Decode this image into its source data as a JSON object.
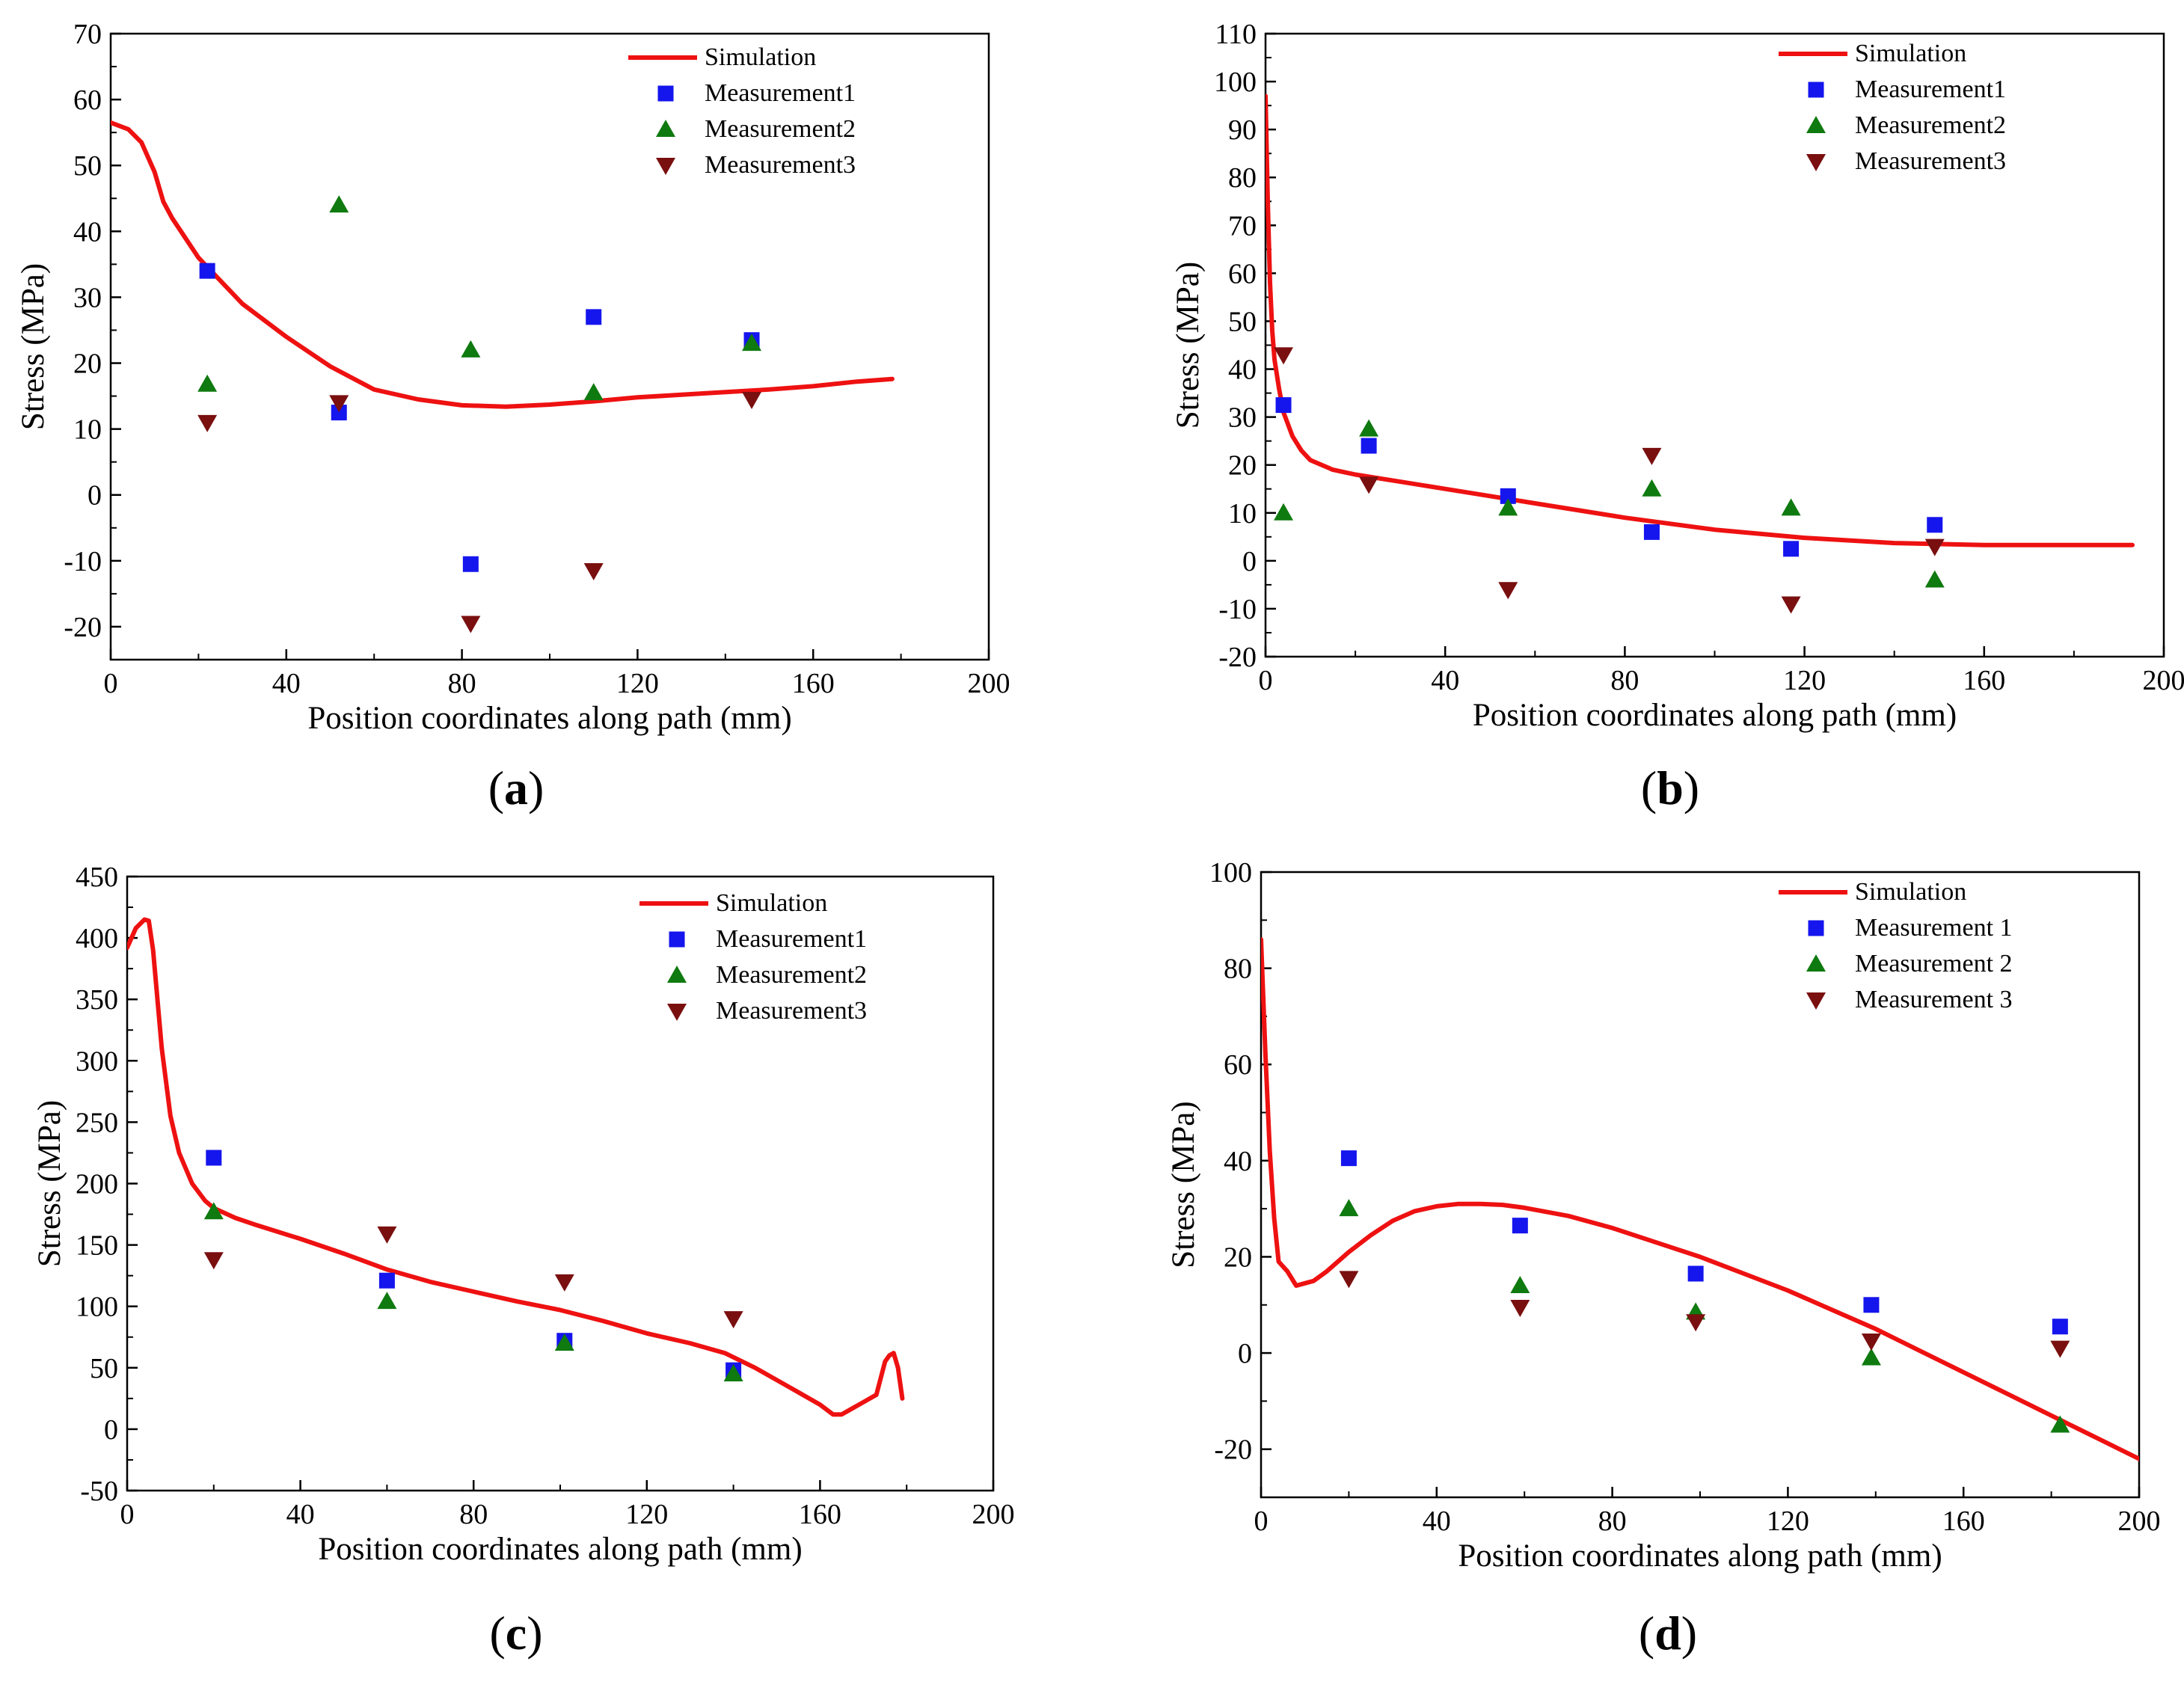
{
  "colors": {
    "simulation": "#ee1111",
    "measurement1": "#1515ee",
    "measurement2": "#0f7a0f",
    "measurement3": "#7a0f0f"
  },
  "chart_data": [
    {
      "id": "a",
      "panel_label": "(a)",
      "type": "line+scatter",
      "xlabel": "Position coordinates along path (mm)",
      "ylabel": "Stress (MPa)",
      "xlim": [
        0,
        200
      ],
      "ylim": [
        -25,
        70
      ],
      "xticks": [
        0,
        40,
        80,
        120,
        160,
        200
      ],
      "yticks": [
        -20,
        -10,
        0,
        10,
        20,
        30,
        40,
        50,
        60,
        70
      ],
      "legend": [
        "Simulation",
        "Measurement1",
        "Measurement2",
        "Measurement3"
      ],
      "simulation": {
        "x": [
          0,
          4,
          7,
          10,
          12,
          14,
          20,
          30,
          40,
          50,
          60,
          70,
          80,
          90,
          100,
          110,
          120,
          130,
          140,
          150,
          160,
          170,
          178
        ],
        "y": [
          56.5,
          55.5,
          53.5,
          49,
          44.5,
          42,
          36,
          29,
          24,
          19.5,
          16,
          14.5,
          13.6,
          13.4,
          13.7,
          14.2,
          14.8,
          15.2,
          15.6,
          16,
          16.5,
          17.2,
          17.6
        ]
      },
      "measurement1": {
        "x": [
          22,
          52,
          82,
          110,
          146
        ],
        "y": [
          34,
          12.5,
          -10.5,
          27,
          23.5
        ]
      },
      "measurement2": {
        "x": [
          22,
          52,
          82,
          110,
          146
        ],
        "y": [
          16.8,
          44,
          22,
          15.5,
          23
        ]
      },
      "measurement3": {
        "x": [
          22,
          52,
          82,
          110,
          146
        ],
        "y": [
          11,
          14,
          -19.5,
          -11.5,
          14.5
        ]
      }
    },
    {
      "id": "b",
      "panel_label": "(b)",
      "type": "line+scatter",
      "xlabel": "Position coordinates along path (mm)",
      "ylabel": "Stress (MPa)",
      "xlim": [
        0,
        200
      ],
      "ylim": [
        -20,
        110
      ],
      "xticks": [
        0,
        40,
        80,
        120,
        160,
        200
      ],
      "yticks": [
        -20,
        -10,
        0,
        10,
        20,
        30,
        40,
        50,
        60,
        70,
        80,
        90,
        100,
        110
      ],
      "legend": [
        "Simulation",
        "Measurement1",
        "Measurement2",
        "Measurement3"
      ],
      "simulation": {
        "x": [
          0,
          0.5,
          1,
          1.5,
          2,
          3,
          4,
          6,
          8,
          10,
          15,
          20,
          30,
          40,
          50,
          60,
          80,
          100,
          120,
          140,
          160,
          180,
          193
        ],
        "y": [
          97,
          75,
          58,
          48,
          42,
          36,
          31,
          26,
          23,
          21,
          19,
          18,
          16.5,
          15,
          13.5,
          12,
          9,
          6.5,
          4.8,
          3.7,
          3.3,
          3.3,
          3.3
        ]
      },
      "measurement1": {
        "x": [
          4,
          23,
          54,
          86,
          117,
          149
        ],
        "y": [
          32.5,
          24,
          13.5,
          6,
          2.5,
          7.5
        ]
      },
      "measurement2": {
        "x": [
          4,
          23,
          54,
          86,
          117,
          149
        ],
        "y": [
          10,
          27.5,
          11,
          15,
          11,
          -4
        ]
      },
      "measurement3": {
        "x": [
          4,
          23,
          54,
          86,
          117,
          149
        ],
        "y": [
          43,
          16,
          -6,
          22,
          -9,
          3
        ]
      }
    },
    {
      "id": "c",
      "panel_label": "(c)",
      "type": "line+scatter",
      "xlabel": "Position coordinates along path (mm)",
      "ylabel": "Stress (MPa)",
      "xlim": [
        0,
        200
      ],
      "ylim": [
        -50,
        450
      ],
      "xticks": [
        0,
        40,
        80,
        120,
        160,
        200
      ],
      "yticks": [
        -50,
        0,
        50,
        100,
        150,
        200,
        250,
        300,
        350,
        400,
        450
      ],
      "legend": [
        "Simulation",
        "Measurement1",
        "Measurement2",
        "Measurement3"
      ],
      "simulation": {
        "x": [
          0,
          2,
          4,
          5,
          6,
          8,
          10,
          12,
          15,
          18,
          20,
          25,
          30,
          40,
          50,
          60,
          70,
          80,
          90,
          100,
          110,
          120,
          130,
          138,
          145,
          150,
          155,
          160,
          163,
          165,
          170,
          173,
          175,
          176,
          177,
          178,
          179
        ],
        "y": [
          392,
          408,
          415,
          414,
          390,
          310,
          255,
          225,
          200,
          186,
          180,
          172,
          166,
          155,
          143,
          130,
          120,
          112,
          104,
          97,
          88,
          78,
          70,
          62,
          50,
          40,
          30,
          20,
          12,
          12,
          22,
          28,
          55,
          60,
          62,
          50,
          25
        ]
      },
      "measurement1": {
        "x": [
          20,
          60,
          101,
          140
        ],
        "y": [
          221,
          121,
          72,
          48
        ]
      },
      "measurement2": {
        "x": [
          20,
          60,
          101,
          140
        ],
        "y": [
          177,
          104,
          70,
          45
        ]
      },
      "measurement3": {
        "x": [
          20,
          60,
          101,
          140
        ],
        "y": [
          138,
          159,
          120,
          90
        ]
      }
    },
    {
      "id": "d",
      "panel_label": "(d)",
      "type": "line+scatter",
      "xlabel": "Position coordinates along path (mm)",
      "ylabel": "Stress (MPa)",
      "xlim": [
        0,
        200
      ],
      "ylim": [
        -30,
        100
      ],
      "xticks": [
        0,
        40,
        80,
        120,
        160,
        200
      ],
      "yticks": [
        -20,
        0,
        20,
        40,
        60,
        80,
        100
      ],
      "legend": [
        "Simulation",
        "Measurement 1",
        "Measurement 2",
        "Measurement 3"
      ],
      "simulation": {
        "x": [
          0,
          1,
          2,
          3,
          4,
          6,
          8,
          10,
          12,
          15,
          20,
          25,
          30,
          35,
          40,
          45,
          50,
          55,
          60,
          70,
          80,
          90,
          100,
          110,
          120,
          130,
          140,
          150,
          160,
          170,
          180,
          190,
          200
        ],
        "y": [
          86,
          62,
          42,
          28,
          19,
          17,
          14,
          14.5,
          15,
          17,
          21,
          24.5,
          27.5,
          29.5,
          30.5,
          31,
          31,
          30.8,
          30.2,
          28.5,
          26,
          23,
          20,
          16.5,
          13,
          9,
          5,
          0.5,
          -4,
          -8.5,
          -13,
          -17.5,
          -22
        ]
      },
      "measurement1": {
        "x": [
          20,
          59,
          99,
          139,
          182
        ],
        "y": [
          40.5,
          26.5,
          16.5,
          10,
          5.5
        ]
      },
      "measurement2": {
        "x": [
          20,
          59,
          99,
          139,
          182
        ],
        "y": [
          30,
          14,
          8.5,
          -1,
          -15
        ]
      },
      "measurement3": {
        "x": [
          20,
          59,
          99,
          139,
          182
        ],
        "y": [
          15.5,
          9.5,
          6.5,
          2.5,
          1
        ]
      }
    }
  ]
}
